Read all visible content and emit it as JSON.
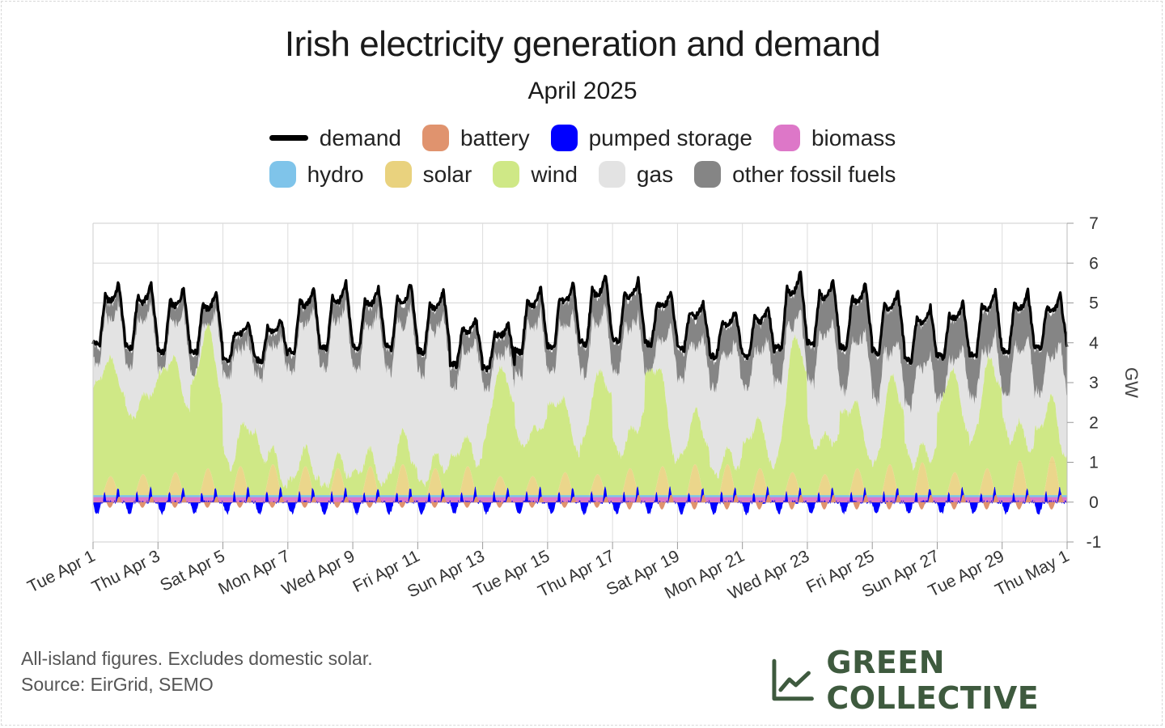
{
  "title": "Irish electricity generation and demand",
  "subtitle": "April 2025",
  "legend": [
    {
      "key": "demand",
      "label": "demand",
      "color": "#000000",
      "kind": "line"
    },
    {
      "key": "battery",
      "label": "battery",
      "color": "#e0936e",
      "kind": "area"
    },
    {
      "key": "pumped",
      "label": "pumped storage",
      "color": "#0000ff",
      "kind": "area"
    },
    {
      "key": "biomass",
      "label": "biomass",
      "color": "#dd77c8",
      "kind": "area"
    },
    {
      "key": "hydro",
      "label": "hydro",
      "color": "#7fc4ea",
      "kind": "area"
    },
    {
      "key": "solar",
      "label": "solar",
      "color": "#e9d27e",
      "kind": "area"
    },
    {
      "key": "wind",
      "label": "wind",
      "color": "#cfe886",
      "kind": "area"
    },
    {
      "key": "gas",
      "label": "gas",
      "color": "#e3e3e3",
      "kind": "area"
    },
    {
      "key": "fossil",
      "label": "other fossil fuels",
      "color": "#858585",
      "kind": "area"
    }
  ],
  "footnote_1": "All-island figures. Excludes domestic solar.",
  "footnote_2": "Source: EirGrid, SEMO",
  "brand": "GREEN COLLECTIVE",
  "chart_data": {
    "type": "area",
    "ylabel": "GW",
    "ylim": [
      -1,
      7
    ],
    "yticks": [
      -1,
      0,
      1,
      2,
      3,
      4,
      5,
      6,
      7
    ],
    "x_range_days": [
      0,
      30
    ],
    "xticks": [
      {
        "day": 0,
        "label": "Tue Apr 1"
      },
      {
        "day": 2,
        "label": "Thu Apr 3"
      },
      {
        "day": 4,
        "label": "Sat Apr 5"
      },
      {
        "day": 6,
        "label": "Mon Apr 7"
      },
      {
        "day": 8,
        "label": "Wed Apr 9"
      },
      {
        "day": 10,
        "label": "Fri Apr 11"
      },
      {
        "day": 12,
        "label": "Sun Apr 13"
      },
      {
        "day": 14,
        "label": "Tue Apr 15"
      },
      {
        "day": 16,
        "label": "Thu Apr 17"
      },
      {
        "day": 18,
        "label": "Sat Apr 19"
      },
      {
        "day": 20,
        "label": "Mon Apr 21"
      },
      {
        "day": 22,
        "label": "Wed Apr 23"
      },
      {
        "day": 24,
        "label": "Fri Apr 25"
      },
      {
        "day": 26,
        "label": "Sun Apr 27"
      },
      {
        "day": 28,
        "label": "Tue Apr 29"
      },
      {
        "day": 30,
        "label": "Thu May 1"
      }
    ],
    "grid": true,
    "legend_position": "top",
    "daily": {
      "days": [
        "Apr 1",
        "Apr 2",
        "Apr 3",
        "Apr 4",
        "Apr 5",
        "Apr 6",
        "Apr 7",
        "Apr 8",
        "Apr 9",
        "Apr 10",
        "Apr 11",
        "Apr 12",
        "Apr 13",
        "Apr 14",
        "Apr 15",
        "Apr 16",
        "Apr 17",
        "Apr 18",
        "Apr 19",
        "Apr 20",
        "Apr 21",
        "Apr 22",
        "Apr 23",
        "Apr 24",
        "Apr 25",
        "Apr 26",
        "Apr 27",
        "Apr 28",
        "Apr 29",
        "Apr 30"
      ],
      "demand_peak_gw": [
        5.5,
        5.5,
        5.4,
        5.3,
        4.5,
        4.6,
        5.4,
        5.5,
        5.4,
        5.5,
        5.3,
        4.6,
        4.5,
        5.4,
        5.5,
        5.7,
        5.6,
        5.3,
        5.0,
        4.8,
        4.9,
        5.8,
        5.6,
        5.5,
        5.3,
        4.9,
        5.0,
        5.3,
        5.3,
        5.2
      ],
      "demand_trough_gw": [
        3.9,
        3.8,
        3.7,
        3.7,
        3.5,
        3.5,
        3.7,
        3.8,
        3.8,
        3.8,
        3.7,
        3.4,
        3.3,
        3.7,
        3.8,
        3.9,
        4.0,
        3.9,
        3.8,
        3.6,
        3.6,
        3.8,
        3.9,
        3.8,
        3.7,
        3.5,
        3.6,
        3.6,
        3.7,
        3.8
      ],
      "wind_peak_gw": [
        3.0,
        2.4,
        3.7,
        3.6,
        2.6,
        0.8,
        0.5,
        0.6,
        0.7,
        0.9,
        0.8,
        1.2,
        2.8,
        2.3,
        2.4,
        2.7,
        2.9,
        3.3,
        1.5,
        1.0,
        1.6,
        3.8,
        2.5,
        2.0,
        2.7,
        1.4,
        2.9,
        3.3,
        2.0,
        1.7
      ],
      "wind_trough_gw": [
        2.6,
        1.8,
        2.6,
        1.6,
        0.5,
        0.3,
        0.2,
        0.3,
        0.3,
        0.3,
        0.3,
        0.4,
        1.6,
        1.1,
        1.2,
        0.8,
        0.9,
        0.9,
        0.6,
        0.4,
        0.5,
        0.7,
        1.0,
        0.8,
        0.6,
        0.5,
        1.2,
        1.3,
        1.0,
        0.8
      ],
      "solar_peak_gw": [
        0.5,
        0.55,
        0.6,
        0.7,
        0.75,
        0.8,
        0.75,
        0.7,
        0.75,
        0.8,
        0.7,
        0.75,
        0.5,
        0.5,
        0.6,
        0.55,
        0.7,
        0.75,
        0.8,
        0.8,
        0.7,
        0.6,
        0.55,
        0.7,
        0.8,
        0.85,
        0.6,
        0.7,
        0.9,
        1.0
      ],
      "fossil_gw": [
        0.4,
        0.4,
        0.4,
        0.4,
        0.35,
        0.35,
        0.4,
        0.45,
        0.45,
        0.5,
        0.5,
        0.45,
        0.45,
        0.5,
        0.6,
        0.7,
        0.7,
        0.8,
        0.7,
        0.7,
        0.7,
        0.8,
        0.9,
        1.0,
        1.1,
        1.1,
        1.0,
        1.0,
        1.0,
        1.1
      ]
    },
    "other_series_approx_gw": {
      "biomass": 0.1,
      "hydro": 0.05,
      "battery_range": [
        -0.2,
        0.2
      ],
      "pumped_storage_range": [
        -0.3,
        0.3
      ]
    }
  }
}
